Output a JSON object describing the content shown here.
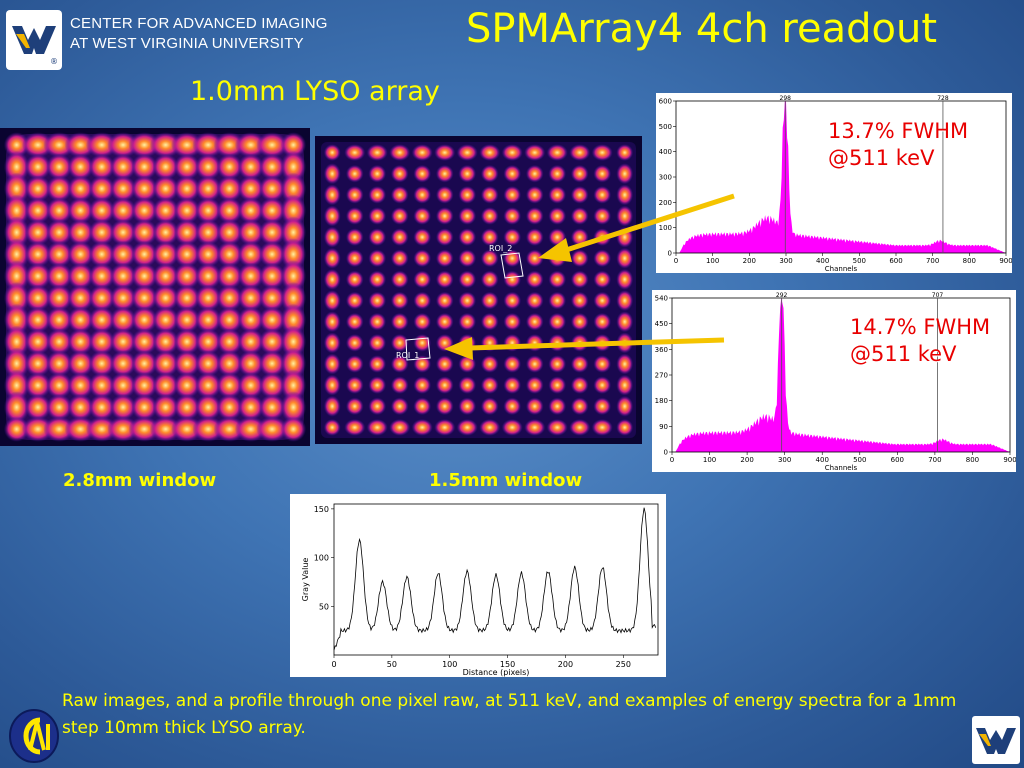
{
  "header": {
    "org_line1": "CENTER FOR ADVANCED IMAGING",
    "org_line2": "AT WEST VIRGINIA UNIVERSITY",
    "title": "SPMArray4 4ch readout",
    "subtitle": "1.0mm LYSO array"
  },
  "flood_images": {
    "left_window_label": "2.8mm window",
    "right_window_label": "1.5mm window",
    "roi_labels": [
      "ROI_2",
      "ROI_1"
    ],
    "grid_rows": 14,
    "grid_cols": 14
  },
  "spectrum_top": {
    "fwhm_line1": "13.7% FWHM",
    "fwhm_line2": "@511 keV",
    "xlabel": "Channels",
    "x_ticks": [
      "0",
      "100",
      "200",
      "300",
      "400",
      "500",
      "600",
      "700",
      "800",
      "900"
    ],
    "y_ticks": [
      "0",
      "100",
      "200",
      "300",
      "400",
      "500",
      "600"
    ],
    "marker_labels": [
      "298",
      "728"
    ],
    "xlim": [
      0,
      900
    ],
    "ylim": [
      0,
      600
    ]
  },
  "spectrum_bottom": {
    "fwhm_line1": "14.7% FWHM",
    "fwhm_line2": "@511 keV",
    "xlabel": "Channels",
    "x_ticks": [
      "0",
      "100",
      "200",
      "300",
      "400",
      "500",
      "600",
      "700",
      "800",
      "900"
    ],
    "y_ticks": [
      "0",
      "90",
      "180",
      "270",
      "360",
      "450",
      "540"
    ],
    "marker_labels": [
      "292",
      "707"
    ],
    "xlim": [
      0,
      900
    ],
    "ylim": [
      0,
      540
    ]
  },
  "profile": {
    "xlabel": "Distance (pixels)",
    "ylabel": "Gray Value",
    "x_ticks": [
      "0",
      "50",
      "100",
      "150",
      "200",
      "250"
    ],
    "y_ticks": [
      "50",
      "100",
      "150"
    ],
    "xlim": [
      0,
      280
    ],
    "ylim": [
      0,
      155
    ]
  },
  "caption": "Raw images, and a profile through one pixel raw, at 511 keV, and examples of energy spectra for a 1mm step 10mm thick LYSO array.",
  "colors": {
    "accent_yellow": "#ffff00",
    "fwhm_red": "#e80000",
    "spectrum_magenta": "#ff00ff",
    "arrow_yellow": "#f5c400"
  },
  "icons": {
    "wvu_logo": "wvu-flying-wv-logo",
    "cai_logo": "cai-logo"
  }
}
